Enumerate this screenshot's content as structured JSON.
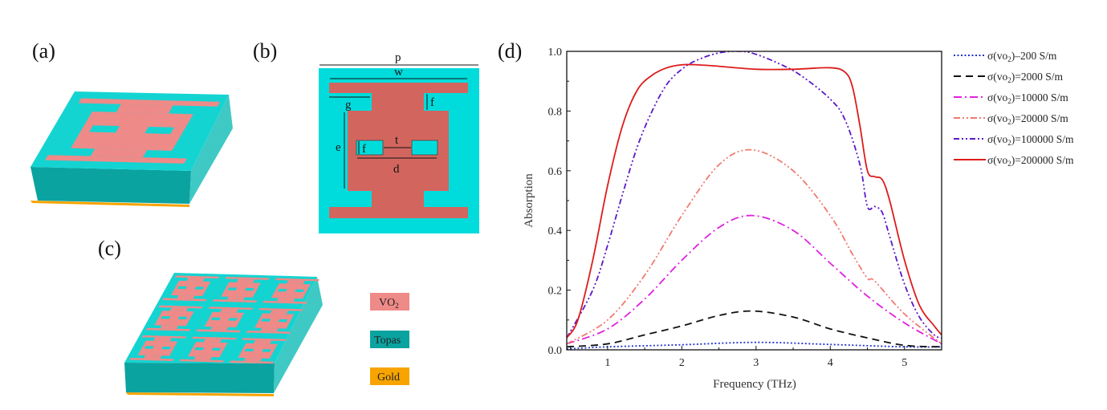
{
  "panels": {
    "a": {
      "label": "(a)"
    },
    "b": {
      "label": "(b)",
      "dims": {
        "p": "p",
        "w": "w",
        "g": "g",
        "f_top": "f",
        "e": "e",
        "f_hole": "f",
        "t": "t",
        "d": "d"
      }
    },
    "c": {
      "label": "(c)"
    },
    "d": {
      "label": "(d)"
    }
  },
  "materials": [
    {
      "name": "VO",
      "sub": "2",
      "color": "#ee8a88"
    },
    {
      "name": "Topas",
      "sub": "",
      "color": "#0aa3a0"
    },
    {
      "name": "Gold",
      "sub": "",
      "color": "#f7a400"
    }
  ],
  "colors": {
    "substrate_top": "#14d4d2",
    "substrate_front": "#0aa3a0",
    "substrate_side": "#3fc9c5",
    "vo2_3d": "#ee8a88",
    "vo2_2d": "#d2665f",
    "cell_bg": "#00dcdc",
    "gold": "#f5a300"
  },
  "chart_data": {
    "type": "line",
    "xlabel": "Frequency (THz)",
    "ylabel": "Absorption",
    "xlim": [
      0.45,
      5.5
    ],
    "ylim": [
      0,
      1.0
    ],
    "xticks": [
      1,
      2,
      3,
      4,
      5
    ],
    "yticks": [
      0.0,
      0.2,
      0.4,
      0.6,
      0.8,
      1.0
    ],
    "legend_position": "outside-right",
    "series": [
      {
        "name_prefix": "σ(vo",
        "name_sub": "2",
        "name_suffix": ")–200 S/m",
        "color": "#2233cc",
        "dash": "2,2.5",
        "x": [
          0.45,
          1,
          2,
          3,
          4,
          5,
          5.5
        ],
        "y": [
          0.003,
          0.01,
          0.017,
          0.025,
          0.018,
          0.01,
          0.01
        ]
      },
      {
        "name_prefix": "σ(vo",
        "name_sub": "2",
        "name_suffix": ")=2000 S/m",
        "color": "#111111",
        "dash": "9,6",
        "x": [
          0.45,
          1,
          1.5,
          2,
          2.5,
          2.95,
          3.5,
          4,
          4.5,
          5,
          5.5
        ],
        "y": [
          0.01,
          0.02,
          0.05,
          0.08,
          0.115,
          0.13,
          0.11,
          0.07,
          0.04,
          0.015,
          0.01
        ]
      },
      {
        "name_prefix": "σ(vo",
        "name_sub": "2",
        "name_suffix": ")=10000 S/m",
        "color": "#e020e0",
        "dash": "10,4,2,4",
        "x": [
          0.45,
          1,
          1.5,
          2,
          2.5,
          2.95,
          3.5,
          4,
          4.5,
          5,
          5.5
        ],
        "y": [
          0.02,
          0.07,
          0.17,
          0.3,
          0.41,
          0.45,
          0.4,
          0.29,
          0.18,
          0.09,
          0.02
        ]
      },
      {
        "name_prefix": "σ(vo",
        "name_sub": "2",
        "name_suffix": ")=20000 S/m",
        "color": "#f07a70",
        "dash": "8,3,2,3,2,3",
        "x": [
          0.45,
          1,
          1.5,
          2,
          2.5,
          2.95,
          3.5,
          4,
          4.3,
          4.5,
          4.6,
          5,
          5.5
        ],
        "y": [
          0.02,
          0.1,
          0.25,
          0.45,
          0.62,
          0.67,
          0.6,
          0.45,
          0.32,
          0.24,
          0.23,
          0.12,
          0.02
        ]
      },
      {
        "name_prefix": "σ(vo",
        "name_sub": "2",
        "name_suffix": ")=100000 S/m",
        "color": "#5a18c8",
        "dash": "7,3,2,3,2,3",
        "x": [
          0.45,
          0.8,
          1,
          1.2,
          1.4,
          1.6,
          1.8,
          2,
          2.2,
          2.5,
          2.8,
          3,
          3.3,
          3.6,
          4,
          4.2,
          4.4,
          4.5,
          4.6,
          4.7,
          4.8,
          5,
          5.2,
          5.4,
          5.5
        ],
        "y": [
          0.04,
          0.2,
          0.35,
          0.52,
          0.68,
          0.8,
          0.89,
          0.94,
          0.97,
          0.995,
          1.0,
          0.99,
          0.96,
          0.92,
          0.84,
          0.77,
          0.62,
          0.48,
          0.48,
          0.46,
          0.38,
          0.22,
          0.11,
          0.05,
          0.04
        ]
      },
      {
        "name_prefix": "σ(vo",
        "name_sub": "2",
        "name_suffix": ")=200000 S/m",
        "color": "#dd1c1c",
        "dash": "",
        "x": [
          0.45,
          0.6,
          0.8,
          1,
          1.2,
          1.4,
          1.6,
          1.8,
          2,
          2.2,
          2.5,
          3,
          3.5,
          4,
          4.2,
          4.3,
          4.4,
          4.5,
          4.6,
          4.7,
          4.8,
          5,
          5.2,
          5.4,
          5.5
        ],
        "y": [
          0.04,
          0.1,
          0.3,
          0.55,
          0.75,
          0.87,
          0.92,
          0.945,
          0.955,
          0.955,
          0.95,
          0.94,
          0.94,
          0.945,
          0.93,
          0.88,
          0.75,
          0.6,
          0.58,
          0.57,
          0.5,
          0.3,
          0.15,
          0.08,
          0.05
        ]
      }
    ]
  }
}
